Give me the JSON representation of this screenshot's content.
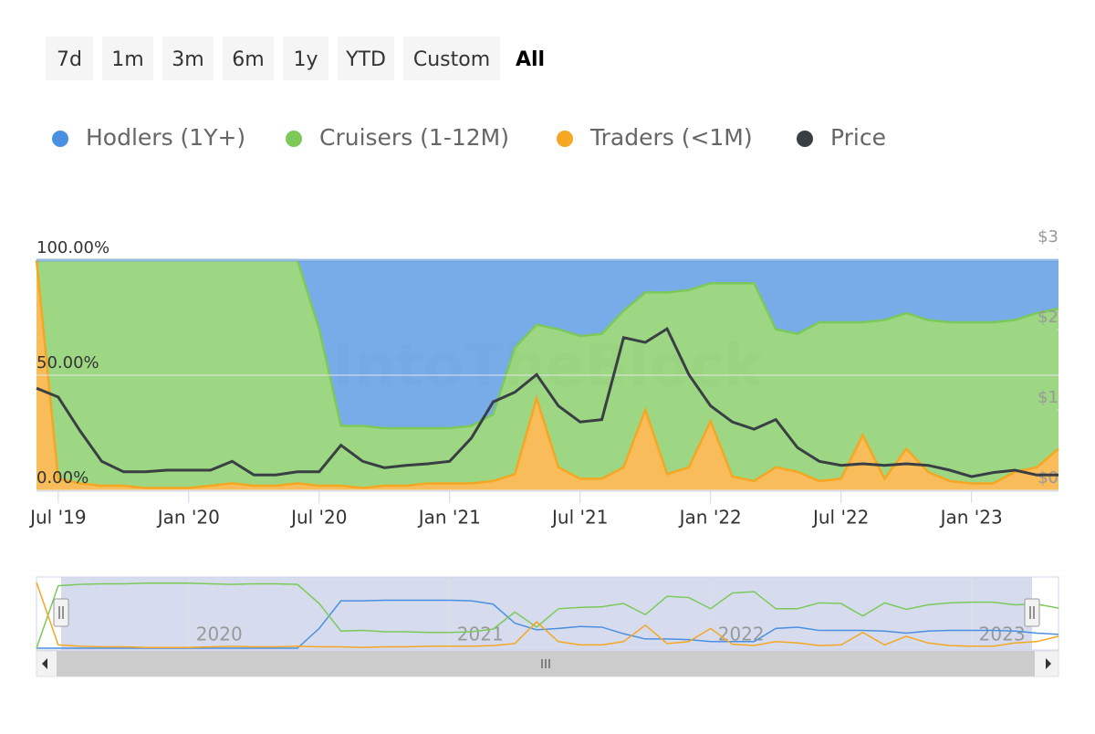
{
  "chart_data": {
    "type": "area",
    "range_buttons": [
      "7d",
      "1m",
      "3m",
      "6m",
      "1y",
      "YTD",
      "Custom",
      "All"
    ],
    "range_selected": "All",
    "watermark": "IntoTheBlock",
    "x": [
      "2019-06",
      "2019-07",
      "2019-08",
      "2019-09",
      "2019-10",
      "2019-11",
      "2019-12",
      "2020-01",
      "2020-02",
      "2020-03",
      "2020-04",
      "2020-05",
      "2020-06",
      "2020-07",
      "2020-08",
      "2020-09",
      "2020-10",
      "2020-11",
      "2020-12",
      "2021-01",
      "2021-02",
      "2021-03",
      "2021-04",
      "2021-05",
      "2021-06",
      "2021-07",
      "2021-08",
      "2021-09",
      "2021-10",
      "2021-11",
      "2021-12",
      "2022-01",
      "2022-02",
      "2022-03",
      "2022-04",
      "2022-05",
      "2022-06",
      "2022-07",
      "2022-08",
      "2022-09",
      "2022-10",
      "2022-11",
      "2022-12",
      "2023-01",
      "2023-02",
      "2023-03",
      "2023-04",
      "2023-05"
    ],
    "xlim": [
      "2019-06",
      "2023-05"
    ],
    "xticks": [
      {
        "value": "2019-07",
        "label": "Jul '19"
      },
      {
        "value": "2020-01",
        "label": "Jan '20"
      },
      {
        "value": "2020-07",
        "label": "Jul '20"
      },
      {
        "value": "2021-01",
        "label": "Jan '21"
      },
      {
        "value": "2021-07",
        "label": "Jul '21"
      },
      {
        "value": "2022-01",
        "label": "Jan '22"
      },
      {
        "value": "2022-07",
        "label": "Jul '22"
      },
      {
        "value": "2023-01",
        "label": "Jan '23"
      }
    ],
    "ylim": [
      0,
      100
    ],
    "yticks": [
      {
        "value": 0,
        "label": "0.00%"
      },
      {
        "value": 50,
        "label": "50.00%"
      },
      {
        "value": 100,
        "label": "100.00%"
      }
    ],
    "y2lim": [
      0,
      3
    ],
    "y2ticks": [
      {
        "value": 0,
        "label": "$0"
      },
      {
        "value": 1,
        "label": "$1"
      },
      {
        "value": 2,
        "label": "$2"
      },
      {
        "value": 3,
        "label": "$3"
      }
    ],
    "stacked": true,
    "navigator_ticks": [
      {
        "value": "2020-01",
        "label": "2020"
      },
      {
        "value": "2021-01",
        "label": "2021"
      },
      {
        "value": "2022-01",
        "label": "2022"
      },
      {
        "value": "2023-01",
        "label": "2023"
      }
    ],
    "series": [
      {
        "name": "Hodlers (1Y+)",
        "color": "#4a90e2",
        "type": "area",
        "values": [
          0,
          0,
          0,
          0,
          0,
          0,
          0,
          0,
          0,
          0,
          0,
          0,
          0,
          30,
          72,
          72,
          73,
          73,
          73,
          73,
          72,
          67,
          38,
          28,
          30,
          33,
          32,
          22,
          14,
          14,
          13,
          10,
          10,
          10,
          30,
          32,
          27,
          27,
          27,
          26,
          23,
          26,
          27,
          27,
          27,
          26,
          23,
          21
        ]
      },
      {
        "name": "Cruisers (1-12M)",
        "color": "#7cc95a",
        "type": "area",
        "values": [
          0,
          95,
          97,
          98,
          98,
          99,
          99,
          99,
          98,
          97,
          98,
          98,
          97,
          68,
          26,
          27,
          25,
          25,
          24,
          24,
          25,
          29,
          55,
          32,
          60,
          62,
          63,
          68,
          51,
          79,
          77,
          60,
          84,
          86,
          60,
          60,
          69,
          68,
          49,
          69,
          59,
          66,
          69,
          70,
          70,
          66,
          67,
          61
        ]
      },
      {
        "name": "Traders (<1M)",
        "color": "#f5a623",
        "type": "area",
        "values": [
          100,
          5,
          3,
          2,
          2,
          1,
          1,
          1,
          2,
          3,
          2,
          2,
          3,
          2,
          2,
          1,
          2,
          2,
          3,
          3,
          3,
          4,
          7,
          40,
          10,
          5,
          5,
          10,
          35,
          7,
          10,
          30,
          6,
          4,
          10,
          8,
          4,
          5,
          24,
          5,
          18,
          8,
          4,
          3,
          3,
          8,
          10,
          18
        ]
      },
      {
        "name": "Price",
        "color": "#3a3f44",
        "type": "line",
        "axis": "y2",
        "values": [
          1.27,
          1.16,
          0.74,
          0.36,
          0.23,
          0.23,
          0.25,
          0.25,
          0.25,
          0.36,
          0.19,
          0.19,
          0.23,
          0.23,
          0.56,
          0.36,
          0.28,
          0.31,
          0.33,
          0.36,
          0.65,
          1.1,
          1.22,
          1.44,
          1.05,
          0.85,
          0.88,
          1.9,
          1.84,
          2.01,
          1.44,
          1.05,
          0.85,
          0.76,
          0.88,
          0.53,
          0.36,
          0.31,
          0.33,
          0.31,
          0.33,
          0.31,
          0.25,
          0.17,
          0.22,
          0.25,
          0.19,
          0.19
        ]
      }
    ]
  }
}
